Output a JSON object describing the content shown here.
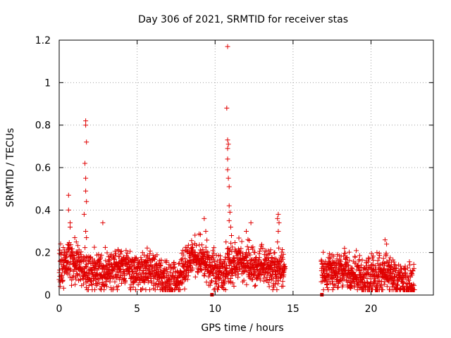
{
  "chart_data": {
    "type": "scatter",
    "title": "Day 306 of 2021, SRMTID for receiver stas",
    "xlabel": "GPS time / hours",
    "ylabel": "SRMTID / TECUs",
    "xlim": [
      0,
      24
    ],
    "ylim": [
      0,
      1.2
    ],
    "xticks": [
      0,
      5,
      10,
      15,
      20
    ],
    "xtick_labels": [
      "0",
      "5",
      "10",
      "15",
      "20"
    ],
    "yticks": [
      0,
      0.2,
      0.4,
      0.6,
      0.8,
      1.0,
      1.2
    ],
    "ytick_labels": [
      "0",
      "0.2",
      "0.4",
      "0.6",
      "0.8",
      "1",
      "1.2"
    ],
    "grid": true,
    "marker": "+",
    "series_color": "#e00000",
    "series": [
      {
        "name": "SRMTID",
        "baseline_profile": [
          [
            0.0,
            0.12
          ],
          [
            0.5,
            0.16
          ],
          [
            1.0,
            0.14
          ],
          [
            1.5,
            0.12
          ],
          [
            2.0,
            0.11
          ],
          [
            2.5,
            0.1
          ],
          [
            3.0,
            0.11
          ],
          [
            3.5,
            0.12
          ],
          [
            4.0,
            0.14
          ],
          [
            4.5,
            0.11
          ],
          [
            5.0,
            0.1
          ],
          [
            5.5,
            0.11
          ],
          [
            6.0,
            0.12
          ],
          [
            6.5,
            0.09
          ],
          [
            7.0,
            0.06
          ],
          [
            7.5,
            0.06
          ],
          [
            8.0,
            0.12
          ],
          [
            8.5,
            0.17
          ],
          [
            9.0,
            0.18
          ],
          [
            9.5,
            0.15
          ],
          [
            10.0,
            0.11
          ],
          [
            10.5,
            0.1
          ],
          [
            11.0,
            0.15
          ],
          [
            11.5,
            0.17
          ],
          [
            12.0,
            0.15
          ],
          [
            12.5,
            0.13
          ],
          [
            13.0,
            0.14
          ],
          [
            13.5,
            0.13
          ],
          [
            14.0,
            0.12
          ],
          [
            14.5,
            0.11
          ],
          [
            16.8,
            0.1
          ],
          [
            17.3,
            0.11
          ],
          [
            17.8,
            0.1
          ],
          [
            18.3,
            0.12
          ],
          [
            18.8,
            0.09
          ],
          [
            19.3,
            0.08
          ],
          [
            19.8,
            0.07
          ],
          [
            20.3,
            0.08
          ],
          [
            20.8,
            0.1
          ],
          [
            21.3,
            0.1
          ],
          [
            21.8,
            0.08
          ],
          [
            22.3,
            0.05
          ],
          [
            22.8,
            0.07
          ]
        ],
        "spikes": [
          [
            0.6,
            0.47
          ],
          [
            0.6,
            0.4
          ],
          [
            0.7,
            0.34
          ],
          [
            0.7,
            0.32
          ],
          [
            1.0,
            0.27
          ],
          [
            1.1,
            0.25
          ],
          [
            1.7,
            0.82
          ],
          [
            1.7,
            0.8
          ],
          [
            1.75,
            0.72
          ],
          [
            1.65,
            0.62
          ],
          [
            1.7,
            0.55
          ],
          [
            1.7,
            0.49
          ],
          [
            1.75,
            0.44
          ],
          [
            1.6,
            0.38
          ],
          [
            1.7,
            0.3
          ],
          [
            1.75,
            0.27
          ],
          [
            2.8,
            0.34
          ],
          [
            10.8,
            1.17
          ],
          [
            10.75,
            0.88
          ],
          [
            10.8,
            0.73
          ],
          [
            10.85,
            0.71
          ],
          [
            10.8,
            0.69
          ],
          [
            10.8,
            0.64
          ],
          [
            10.8,
            0.59
          ],
          [
            10.85,
            0.55
          ],
          [
            10.9,
            0.51
          ],
          [
            10.9,
            0.42
          ],
          [
            10.95,
            0.39
          ],
          [
            10.9,
            0.35
          ],
          [
            11.0,
            0.32
          ],
          [
            11.05,
            0.28
          ],
          [
            10.7,
            0.25
          ],
          [
            9.3,
            0.36
          ],
          [
            9.4,
            0.3
          ],
          [
            12.3,
            0.34
          ],
          [
            12.0,
            0.3
          ],
          [
            14.05,
            0.38
          ],
          [
            14.0,
            0.36
          ],
          [
            14.1,
            0.34
          ],
          [
            14.05,
            0.3
          ],
          [
            14.0,
            0.25
          ],
          [
            20.9,
            0.26
          ],
          [
            21.0,
            0.24
          ],
          [
            18.3,
            0.22
          ],
          [
            17.5,
            0.19
          ]
        ],
        "zero_markers": [
          9.8,
          16.85
        ]
      }
    ]
  }
}
